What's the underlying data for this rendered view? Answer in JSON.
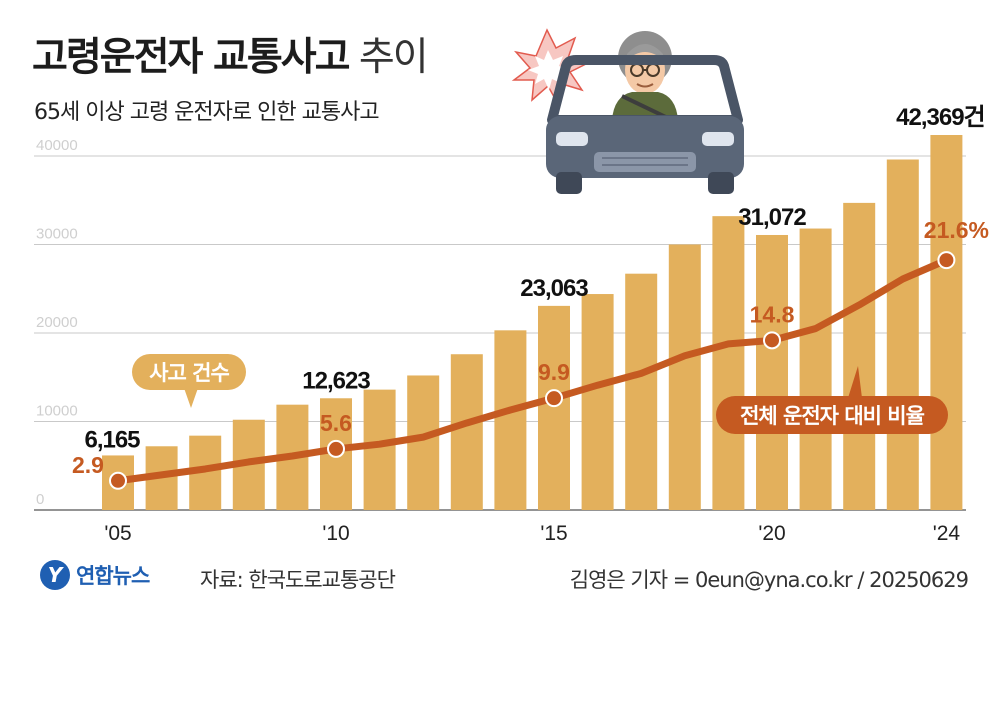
{
  "header": {
    "title_bold": "고령운전자 교통사고",
    "title_light": "추이",
    "subtitle": "65세 이상 고령 운전자로 인한 교통사고"
  },
  "footer": {
    "logo_mark": "Y",
    "logo_text": "연합뉴스",
    "source": "자료: 한국도로교통공단",
    "credit": "김영은 기자 = 0eun@yna.co.kr / 20250629"
  },
  "colors": {
    "bar": "#e3b05c",
    "line": "#c55a21",
    "grid": "#c9c9c9",
    "axis_text": "#cfcfcf"
  },
  "chart_data": {
    "type": "bar",
    "x": [
      2005,
      2006,
      2007,
      2008,
      2009,
      2010,
      2011,
      2012,
      2013,
      2014,
      2015,
      2016,
      2017,
      2018,
      2019,
      2020,
      2021,
      2022,
      2023,
      2024
    ],
    "x_tick_labels": [
      {
        "year": 2005,
        "label": "'05"
      },
      {
        "year": 2010,
        "label": "'10"
      },
      {
        "year": 2015,
        "label": "'15"
      },
      {
        "year": 2020,
        "label": "'20"
      },
      {
        "year": 2024,
        "label": "'24"
      }
    ],
    "y_ticks": [
      {
        "value": 0,
        "label": "0"
      },
      {
        "value": 10000,
        "label": "10000"
      },
      {
        "value": 20000,
        "label": "20000"
      },
      {
        "value": 30000,
        "label": "30000"
      },
      {
        "value": 40000,
        "label": "40000"
      }
    ],
    "ylim": [
      0,
      42369
    ],
    "grid": true,
    "series": [
      {
        "name": "사고 건수",
        "kind": "bar",
        "values": [
          6165,
          7200,
          8400,
          10200,
          11900,
          12623,
          13600,
          15200,
          17600,
          20300,
          23063,
          24400,
          26700,
          30000,
          33200,
          31072,
          31800,
          34700,
          39600,
          42369
        ],
        "labeled": [
          {
            "year": 2005,
            "label": "6,165"
          },
          {
            "year": 2010,
            "label": "12,623"
          },
          {
            "year": 2015,
            "label": "23,063"
          },
          {
            "year": 2020,
            "label": "31,072"
          },
          {
            "year": 2024,
            "label": "42,369건"
          }
        ]
      },
      {
        "name": "전체 운전자 대비 비율",
        "kind": "line",
        "unit": "%",
        "ylim": [
          0,
          25
        ],
        "values": [
          2.9,
          3.4,
          3.9,
          4.5,
          5.0,
          5.6,
          6.0,
          6.6,
          7.8,
          8.9,
          9.9,
          11.0,
          12.0,
          13.5,
          14.5,
          14.8,
          15.8,
          17.8,
          20.0,
          21.6
        ],
        "labeled": [
          {
            "year": 2005,
            "label": "2.9"
          },
          {
            "year": 2010,
            "label": "5.6"
          },
          {
            "year": 2015,
            "label": "9.9"
          },
          {
            "year": 2020,
            "label": "14.8"
          },
          {
            "year": 2024,
            "label": "21.6%"
          }
        ]
      }
    ],
    "callouts": [
      {
        "series": "사고 건수",
        "text": "사고 건수"
      },
      {
        "series": "전체 운전자 대비 비율",
        "text": "전체 운전자 대비 비율"
      }
    ]
  }
}
